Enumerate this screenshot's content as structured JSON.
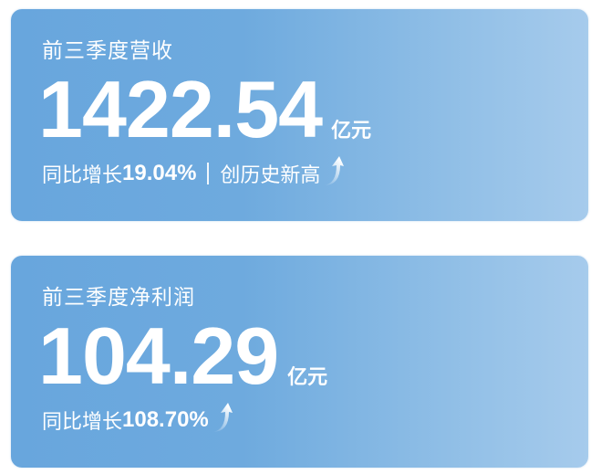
{
  "cards": [
    {
      "title": "前三季度营收",
      "value": "1422.54",
      "unit": "亿元",
      "growth_label": "同比增长",
      "growth_value": "19.04%",
      "note": "创历史新高",
      "icon": "up-arrow-icon"
    },
    {
      "title": "前三季度净利润",
      "value": "104.29",
      "unit": "亿元",
      "growth_label": "同比增长",
      "growth_value": "108.70%",
      "icon": "up-arrow-icon"
    }
  ],
  "colors": {
    "card_start": "#68a6dd",
    "card_end": "#a6cbec",
    "text": "#ffffff"
  }
}
